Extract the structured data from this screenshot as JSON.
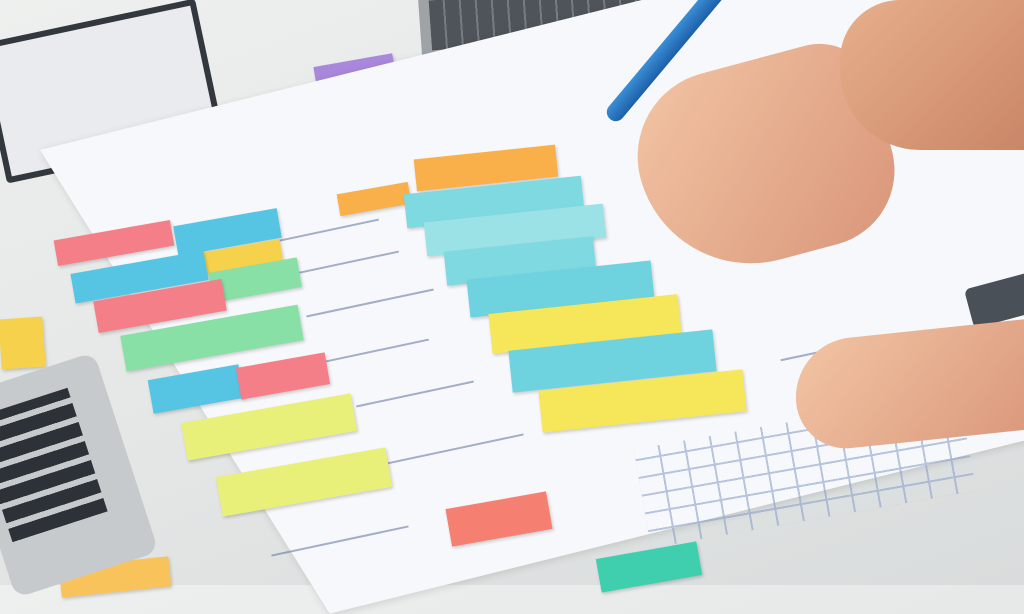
{
  "scene": {
    "subject": "hand-writing-on-planning-sheet-with-sticky-notes",
    "colors": {
      "desk": "#e4e7e6",
      "paper": "#f7f8fb",
      "pink": "#f57f88",
      "blue": "#56c5e3",
      "cyan": "#7fd9e0",
      "yellow": "#f6e86a",
      "green": "#88e0a6",
      "orange": "#f9c35b",
      "purple": "#a988dc",
      "pen": "#2a7cc8",
      "ink": "#5d6f9c"
    },
    "icons": [
      "pen-icon",
      "calculator-icon",
      "laptop-icon",
      "phone-icon",
      "clipboard-icon"
    ]
  }
}
